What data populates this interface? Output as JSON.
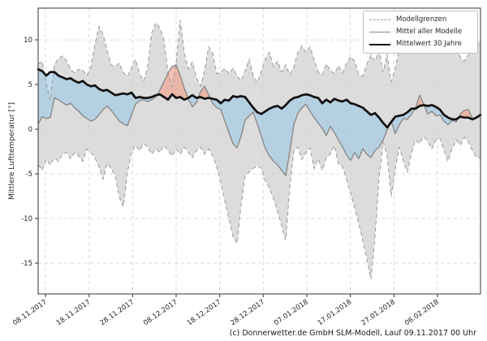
{
  "footer": {
    "credit": "(c) Donnerwetter.de GmbH SLM-Modell, Lauf 09.11.2017 00 Uhr"
  },
  "chart_data": {
    "type": "line",
    "title": "",
    "xlabel": "",
    "ylabel": "Mittlere Lufttemperatur [°]",
    "ylim": [
      -18.45,
      13.55
    ],
    "grid": true,
    "legend_position": "upper right",
    "legend": [
      {
        "key": "bounds",
        "label": "Modellgrenzen"
      },
      {
        "key": "model",
        "label": "Mittel aller Modelle"
      },
      {
        "key": "mean30",
        "label": "Mittelwert 30 Jahre"
      }
    ],
    "yticks": [
      {
        "v": 10,
        "label": "10"
      },
      {
        "v": 5,
        "label": "5"
      },
      {
        "v": 0,
        "label": "0"
      },
      {
        "v": -5,
        "label": "-5"
      },
      {
        "v": -10,
        "label": "-10"
      },
      {
        "v": -15,
        "label": "-15"
      }
    ],
    "x_day_range": [
      -1.7,
      99.9
    ],
    "xticks": [
      {
        "day": 0,
        "label": "08.11.2017"
      },
      {
        "day": 10,
        "label": "18.11.2017"
      },
      {
        "day": 20,
        "label": "28.11.2017"
      },
      {
        "day": 30,
        "label": "08.12.2017"
      },
      {
        "day": 40,
        "label": "18.12.2017"
      },
      {
        "day": 50,
        "label": "28.12.2017"
      },
      {
        "day": 60,
        "label": "07.01.2018"
      },
      {
        "day": 70,
        "label": "17.01.2018"
      },
      {
        "day": 80,
        "label": "27.01.2018"
      },
      {
        "day": 90,
        "label": "06.02.2018"
      }
    ],
    "colors": {
      "band_fill": "#dcdcdc",
      "band_edge": "#999999",
      "model_line": "#8a8a8a",
      "mean30_line": "#111111",
      "fill_below": "#9fcae3",
      "fill_above": "#f0a28c",
      "fill_alpha": 0.65,
      "grid": "#cfcfcf",
      "axis": "#333333",
      "tick_text": "#262626"
    },
    "series": {
      "upper": {
        "name": "Modellgrenzen (oben)",
        "values": [
          7.3,
          7.6,
          5.0,
          3.2,
          7.2,
          7.9,
          8.2,
          7.7,
          6.7,
          6.3,
          6.7,
          6.6,
          6.0,
          7.0,
          9.5,
          11.5,
          10.6,
          8.8,
          7.2,
          7.0,
          7.4,
          6.3,
          5.9,
          6.9,
          7.8,
          6.2,
          5.4,
          7.0,
          10.8,
          11.9,
          11.3,
          10.0,
          6.3,
          4.7,
          7.5,
          12.2,
          8.5,
          6.7,
          7.5,
          5.8,
          4.8,
          6.5,
          9.2,
          8.5,
          6.2,
          6.4,
          6.8,
          6.2,
          6.8,
          6.0,
          5.4,
          6.5,
          7.8,
          6.0,
          5.2,
          6.5,
          7.9,
          8.6,
          7.0,
          7.6,
          6.4,
          7.2,
          6.1,
          7.0,
          8.6,
          9.3,
          8.6,
          9.2,
          7.8,
          6.4,
          6.1,
          7.3,
          6.6,
          6.2,
          7.1,
          6.3,
          7.4,
          8.1,
          7.6,
          6.1,
          5.9,
          7.3,
          8.3,
          7.6,
          8.8,
          6.4,
          8.4,
          5.3,
          6.8,
          9.0,
          10.8,
          11.2,
          9.4,
          10.3,
          10.9,
          8.6,
          8.9,
          10.2,
          11.0,
          10.6,
          9.5,
          9.8,
          10.6,
          9.0,
          8.1,
          7.6,
          8.3,
          8.8,
          9.6,
          9.9
        ]
      },
      "lower": {
        "name": "Modellgrenzen (unten)",
        "values": [
          -4.0,
          -4.6,
          -3.4,
          -4.0,
          -3.2,
          -3.6,
          -2.8,
          -2.6,
          -3.3,
          -2.6,
          -3.0,
          -3.6,
          -2.2,
          -2.6,
          -3.2,
          -4.2,
          -5.6,
          -3.8,
          -4.4,
          -5.2,
          -7.6,
          -8.7,
          -4.8,
          -2.6,
          -1.8,
          -2.4,
          -1.6,
          -2.0,
          -2.8,
          -2.2,
          -2.6,
          -1.8,
          -2.4,
          -3.0,
          -2.2,
          -2.8,
          -2.0,
          -2.6,
          -3.2,
          -2.4,
          -2.0,
          -2.8,
          -2.2,
          -3.0,
          -4.2,
          -6.0,
          -8.0,
          -10.0,
          -12.0,
          -12.8,
          -8.5,
          -5.2,
          -4.8,
          -4.4,
          -4.1,
          -4.4,
          -5.8,
          -6.6,
          -7.8,
          -9.2,
          -10.8,
          -12.4,
          -6.5,
          -2.4,
          -2.0,
          -3.4,
          -2.6,
          -2.1,
          -4.4,
          -3.3,
          -4.6,
          -3.2,
          -2.8,
          -1.8,
          -3.9,
          -4.2,
          -5.6,
          -7.2,
          -8.8,
          -10.5,
          -12.5,
          -14.5,
          -16.8,
          -12.0,
          -5.5,
          -1.4,
          -3.0,
          -7.5,
          -4.5,
          -2.0,
          -3.6,
          -4.8,
          -2.6,
          -1.2,
          -1.6,
          -0.8,
          -1.4,
          -2.2,
          -1.2,
          -1.0,
          -2.4,
          -3.6,
          -2.2,
          -1.2,
          -1.8,
          -0.9,
          -1.4,
          -2.4,
          -3.1,
          -3.3
        ]
      },
      "model_mean": {
        "name": "Mittel aller Modelle",
        "values": [
          0.6,
          1.4,
          1.2,
          1.3,
          3.5,
          3.3,
          3.0,
          2.7,
          2.9,
          2.4,
          2.0,
          1.5,
          1.2,
          0.9,
          1.1,
          1.6,
          2.2,
          2.6,
          2.1,
          1.5,
          0.9,
          0.6,
          0.4,
          1.6,
          2.8,
          3.2,
          3.3,
          3.1,
          3.3,
          3.6,
          4.4,
          5.3,
          6.3,
          7.0,
          7.2,
          6.0,
          4.6,
          3.4,
          2.5,
          3.0,
          4.2,
          4.8,
          3.9,
          2.9,
          2.4,
          2.2,
          0.9,
          -0.4,
          -1.6,
          -2.1,
          -0.8,
          1.0,
          1.5,
          1.9,
          0.6,
          -0.8,
          -2.2,
          -3.0,
          -3.6,
          -4.0,
          -4.6,
          -5.2,
          -2.5,
          0.5,
          1.8,
          2.4,
          2.8,
          2.0,
          1.3,
          0.7,
          0.1,
          -0.7,
          0.3,
          -0.4,
          -1.2,
          -2.0,
          -2.9,
          -3.5,
          -2.6,
          -3.3,
          -2.2,
          -2.8,
          -3.2,
          -2.4,
          -2.0,
          -1.2,
          -0.1,
          0.9,
          -0.5,
          0.5,
          1.2,
          1.1,
          1.7,
          2.4,
          3.8,
          2.8,
          1.7,
          2.0,
          1.5,
          1.6,
          0.9,
          0.5,
          1.0,
          0.8,
          1.7,
          2.1,
          2.2,
          1.2,
          1.3,
          1.6
        ]
      },
      "mean30": {
        "name": "Mittelwert 30 Jahre",
        "values": [
          6.7,
          6.5,
          6.0,
          6.4,
          6.4,
          6.0,
          5.8,
          5.6,
          5.7,
          5.4,
          5.2,
          5.4,
          5.0,
          4.8,
          4.9,
          4.5,
          4.3,
          4.4,
          4.1,
          3.8,
          3.9,
          4.0,
          3.9,
          4.1,
          3.5,
          3.6,
          3.5,
          3.5,
          3.6,
          3.8,
          3.9,
          3.6,
          3.3,
          3.9,
          3.5,
          3.6,
          3.3,
          3.5,
          3.8,
          3.5,
          3.6,
          3.4,
          3.5,
          3.4,
          3.3,
          2.9,
          3.3,
          3.2,
          3.7,
          3.6,
          3.7,
          3.6,
          3.0,
          2.4,
          1.9,
          1.7,
          2.0,
          2.3,
          2.5,
          2.6,
          2.3,
          2.7,
          3.2,
          3.5,
          3.6,
          3.8,
          3.9,
          3.8,
          3.6,
          3.5,
          2.9,
          3.3,
          3.0,
          3.4,
          3.2,
          3.1,
          3.3,
          2.9,
          2.8,
          2.6,
          2.4,
          2.0,
          1.6,
          1.8,
          1.3,
          0.7,
          0.2,
          0.8,
          1.4,
          1.5,
          1.6,
          1.9,
          2.3,
          2.3,
          2.6,
          2.7,
          2.6,
          2.7,
          2.5,
          2.2,
          1.6,
          1.3,
          1.1,
          1.1,
          1.4,
          1.3,
          1.3,
          1.1,
          1.3,
          1.6
        ]
      }
    }
  }
}
